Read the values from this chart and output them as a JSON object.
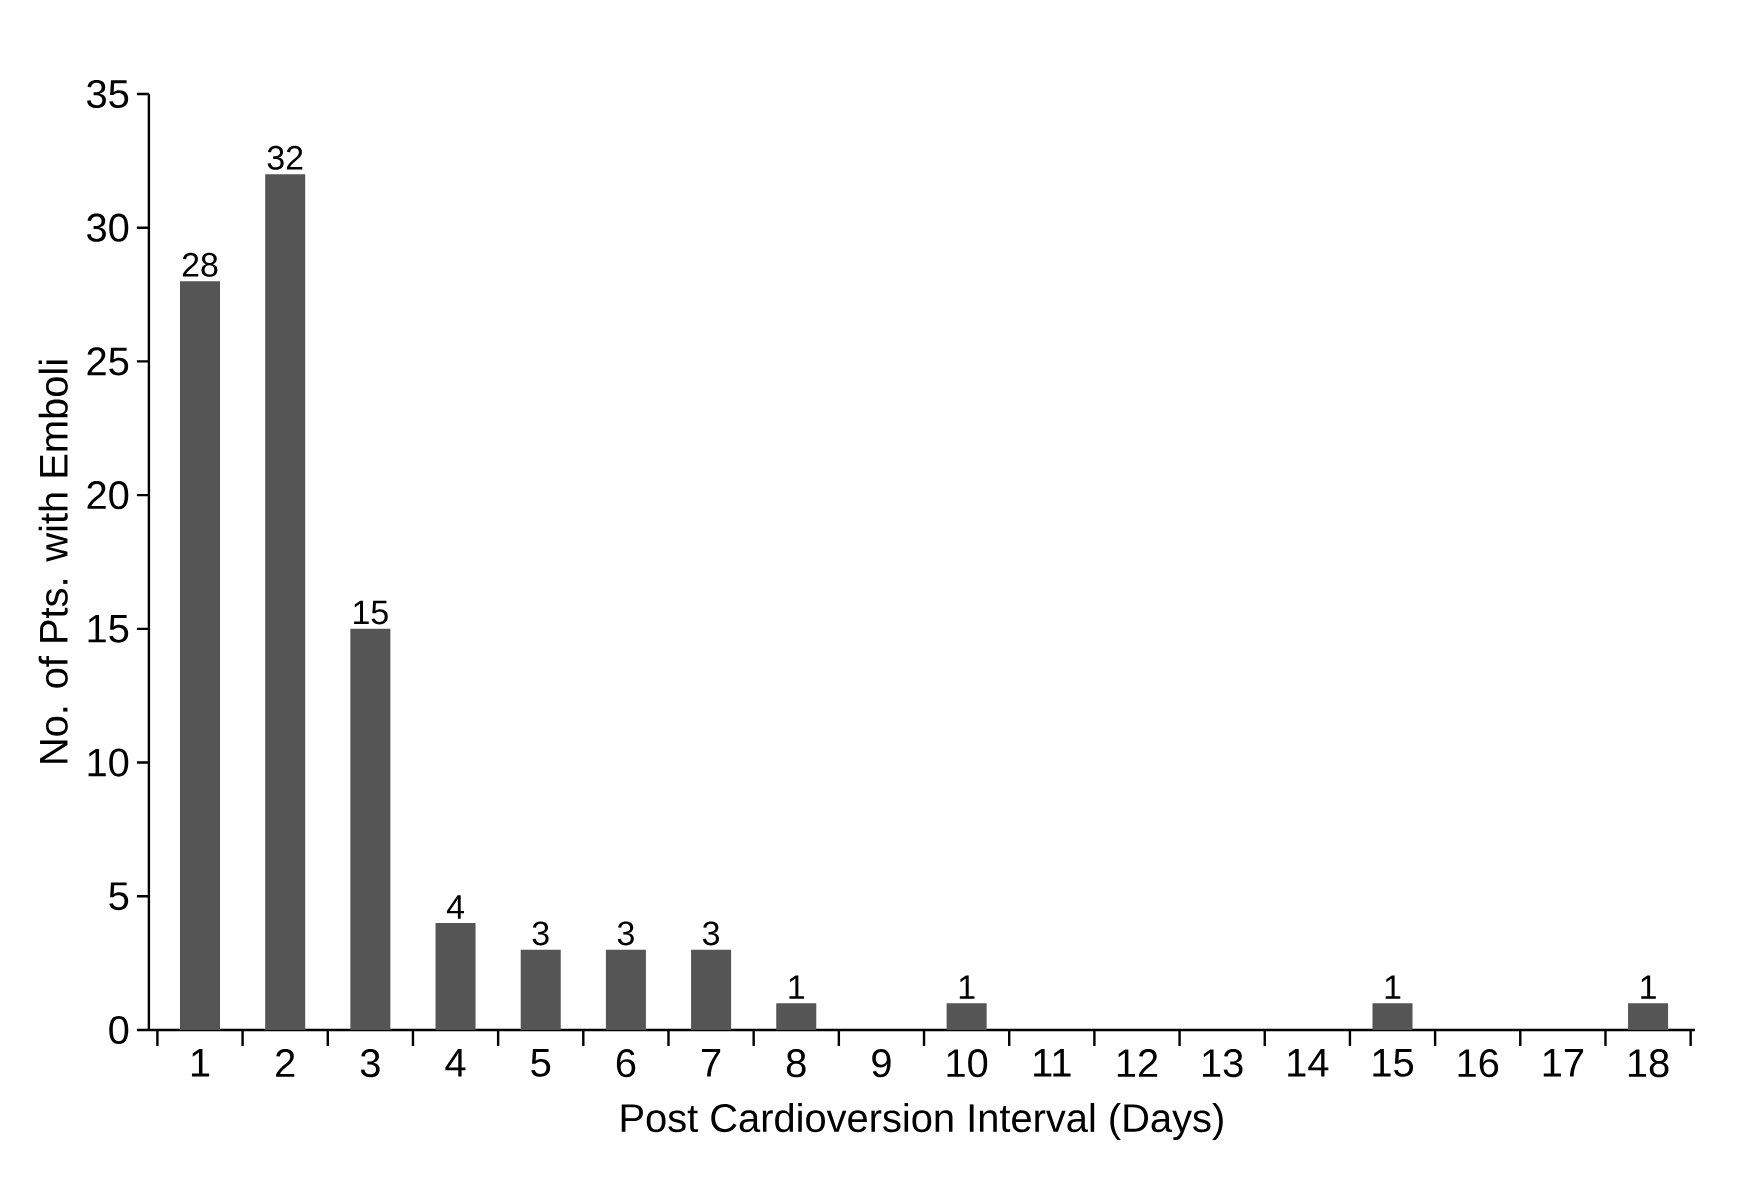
{
  "chart_data": {
    "type": "bar",
    "xlabel": "Post Cardioversion Interval (Days)",
    "ylabel": "No. of Pts. with Emboli",
    "categories": [
      "1",
      "2",
      "3",
      "4",
      "5",
      "6",
      "7",
      "8",
      "9",
      "10",
      "11",
      "12",
      "13",
      "14",
      "15",
      "16",
      "17",
      "18"
    ],
    "values": [
      28,
      32,
      15,
      4,
      3,
      3,
      3,
      1,
      0,
      1,
      0,
      0,
      0,
      0,
      1,
      0,
      0,
      1
    ],
    "value_labels": [
      "28",
      "32",
      "15",
      "4",
      "3",
      "3",
      "3",
      "1",
      null,
      "1",
      null,
      null,
      null,
      null,
      "1",
      null,
      null,
      "1"
    ],
    "color": "#555555",
    "ylim": [
      0,
      35
    ],
    "yticks": [
      0,
      5,
      10,
      15,
      20,
      25,
      30,
      35
    ]
  }
}
